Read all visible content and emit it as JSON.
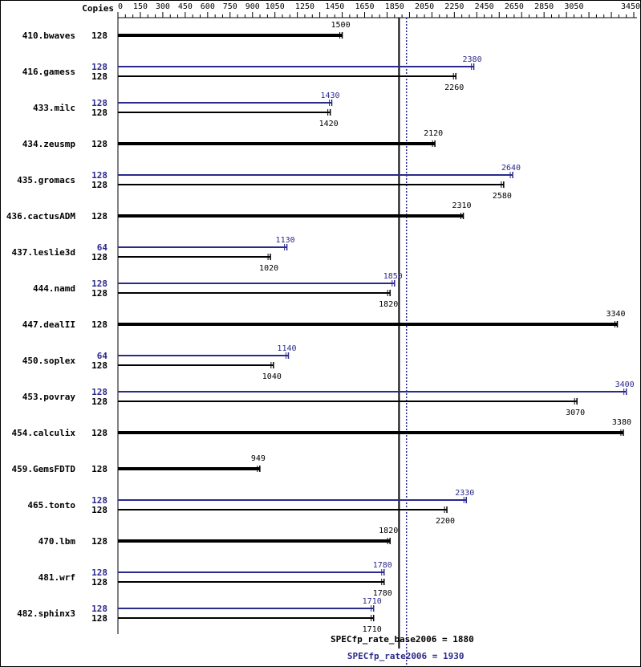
{
  "header": {
    "copies_label": "Copies"
  },
  "colors": {
    "base": "#000000",
    "peak": "#2a2a8c",
    "background": "#ffffff"
  },
  "chart_data": {
    "type": "bar",
    "orientation": "horizontal",
    "x_ticks": [
      0,
      150,
      300,
      450,
      600,
      750,
      900,
      1050,
      1250,
      1450,
      1650,
      1850,
      2050,
      2250,
      2450,
      2650,
      2850,
      3050,
      3450
    ],
    "xlim": [
      0,
      3450
    ],
    "grid": false,
    "base_metric": {
      "label": "SPECfp_rate_base2006 = 1880",
      "value": 1880
    },
    "peak_metric": {
      "label": "SPECfp_rate2006 = 1930",
      "value": 1930
    },
    "benchmarks": [
      {
        "name": "410.bwaves",
        "base": {
          "copies": "128",
          "value": 1500
        },
        "peak": null
      },
      {
        "name": "416.gamess",
        "base": {
          "copies": "128",
          "value": 2260
        },
        "peak": {
          "copies": "128",
          "value": 2380
        }
      },
      {
        "name": "433.milc",
        "base": {
          "copies": "128",
          "value": 1420
        },
        "peak": {
          "copies": "128",
          "value": 1430
        }
      },
      {
        "name": "434.zeusmp",
        "base": {
          "copies": "128",
          "value": 2120
        },
        "peak": null
      },
      {
        "name": "435.gromacs",
        "base": {
          "copies": "128",
          "value": 2580
        },
        "peak": {
          "copies": "128",
          "value": 2640
        }
      },
      {
        "name": "436.cactusADM",
        "base": {
          "copies": "128",
          "value": 2310
        },
        "peak": null
      },
      {
        "name": "437.leslie3d",
        "base": {
          "copies": "128",
          "value": 1020
        },
        "peak": {
          "copies": "64",
          "value": 1130
        }
      },
      {
        "name": "444.namd",
        "base": {
          "copies": "128",
          "value": 1820
        },
        "peak": {
          "copies": "128",
          "value": 1850
        }
      },
      {
        "name": "447.dealII",
        "base": {
          "copies": "128",
          "value": 3340
        },
        "peak": null
      },
      {
        "name": "450.soplex",
        "base": {
          "copies": "128",
          "value": 1040
        },
        "peak": {
          "copies": "64",
          "value": 1140
        }
      },
      {
        "name": "453.povray",
        "base": {
          "copies": "128",
          "value": 3070
        },
        "peak": {
          "copies": "128",
          "value": 3400
        }
      },
      {
        "name": "454.calculix",
        "base": {
          "copies": "128",
          "value": 3380
        },
        "peak": null
      },
      {
        "name": "459.GemsFDTD",
        "base": {
          "copies": "128",
          "value": 949
        },
        "peak": null
      },
      {
        "name": "465.tonto",
        "base": {
          "copies": "128",
          "value": 2200
        },
        "peak": {
          "copies": "128",
          "value": 2330
        }
      },
      {
        "name": "470.lbm",
        "base": {
          "copies": "128",
          "value": 1820
        },
        "peak": null
      },
      {
        "name": "481.wrf",
        "base": {
          "copies": "128",
          "value": 1780
        },
        "peak": {
          "copies": "128",
          "value": 1780
        }
      },
      {
        "name": "482.sphinx3",
        "base": {
          "copies": "128",
          "value": 1710
        },
        "peak": {
          "copies": "128",
          "value": 1710
        }
      }
    ]
  }
}
